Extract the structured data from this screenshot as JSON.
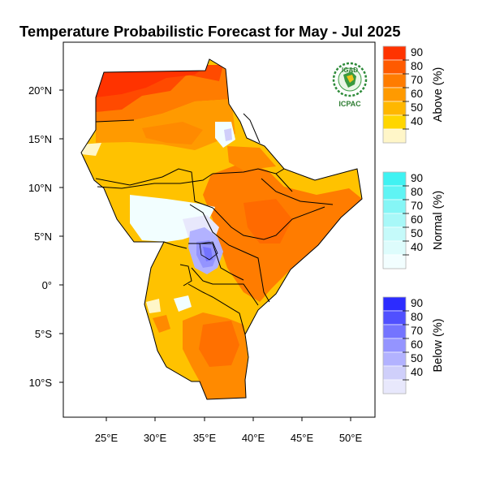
{
  "title": "Temperature Probabilistic Forecast for May - Jul 2025",
  "logo": {
    "text_top": "IGAD",
    "text_bottom": "ICPAC"
  },
  "map": {
    "lon_ticks": [
      "25°E",
      "30°E",
      "35°E",
      "40°E",
      "45°E",
      "50°E"
    ],
    "lat_ticks": [
      "20°N",
      "15°N",
      "10°N",
      "5°N",
      "0°",
      "5°S",
      "10°S"
    ],
    "lon_range": [
      20.5,
      52.5
    ],
    "lat_range": [
      -13.5,
      24.5
    ]
  },
  "legend": [
    {
      "name": "Above (%)",
      "levels": [
        "90",
        "80",
        "70",
        "60",
        "50",
        "40"
      ],
      "colors": [
        "#ff3300",
        "#ff5a00",
        "#ff7c00",
        "#ff9a00",
        "#ffb700",
        "#ffd600",
        "#fff6c8"
      ]
    },
    {
      "name": "Normal (%)",
      "levels": [
        "90",
        "80",
        "70",
        "60",
        "50",
        "40"
      ],
      "colors": [
        "#40f2f2",
        "#5ff4f4",
        "#85f6f6",
        "#a8f8f8",
        "#c5fafa",
        "#ddfcfc",
        "#f2feff"
      ]
    },
    {
      "name": "Below (%)",
      "levels": [
        "90",
        "80",
        "70",
        "60",
        "50",
        "40"
      ],
      "colors": [
        "#2c2cff",
        "#5050ff",
        "#7474ff",
        "#9494ff",
        "#b2b2ff",
        "#cfcffa",
        "#e8e8fc"
      ]
    }
  ]
}
